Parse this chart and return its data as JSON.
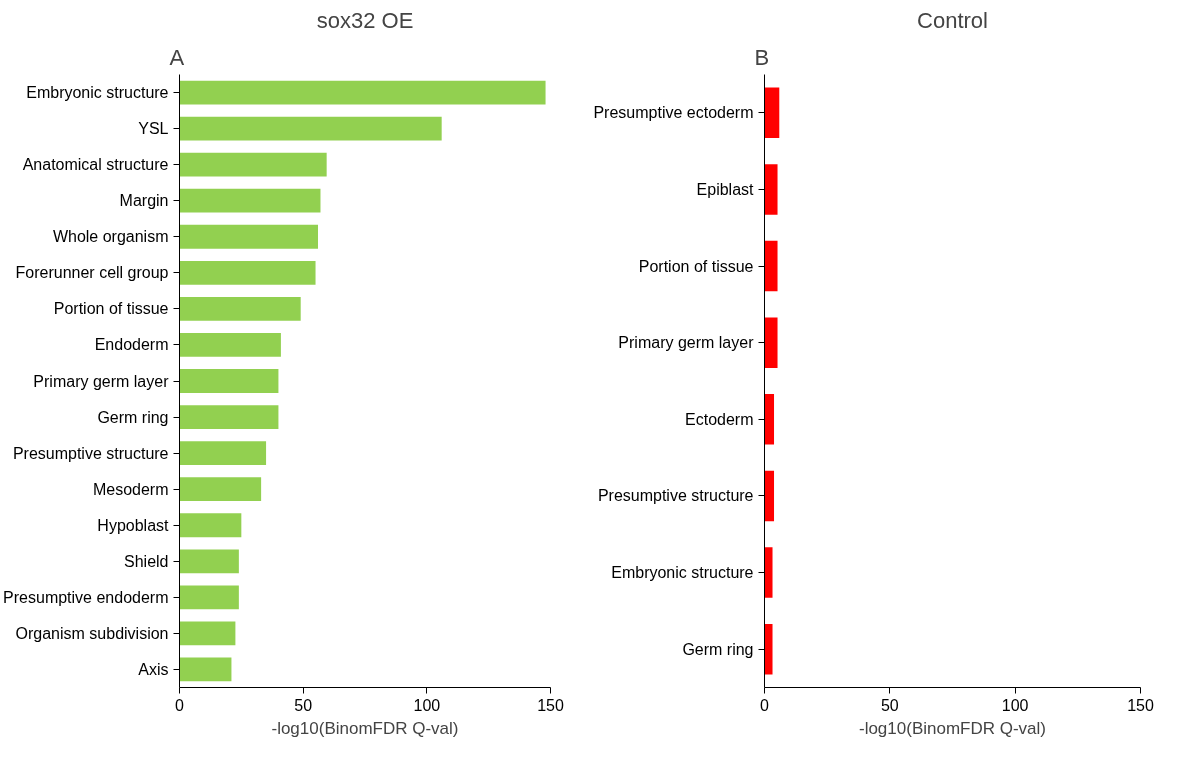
{
  "chart_data": [
    {
      "type": "bar",
      "orientation": "horizontal",
      "title": "sox32 OE",
      "xlabel": "-log10(BinomFDR Q-val)",
      "annotations": [
        "A"
      ],
      "categories": [
        "Embryonic structure",
        "YSL",
        "Anatomical structure",
        "Margin",
        "Whole organism",
        "Forerunner cell group",
        "Portion of tissue",
        "Endoderm",
        "Primary germ layer",
        "Germ ring",
        "Presumptive structure",
        "Mesoderm",
        "Hypoblast",
        "Shield",
        "Presumptive endoderm",
        "Organism subdivision",
        "Axis"
      ],
      "values": [
        148,
        106,
        59.5,
        57,
        56,
        55,
        49,
        41,
        40,
        40,
        35,
        33,
        25,
        24,
        24,
        22.6,
        21
      ],
      "color": "#92d050",
      "xlim": [
        0,
        150
      ],
      "xticks": [
        0,
        50,
        100,
        150
      ],
      "grid": false
    },
    {
      "type": "bar",
      "orientation": "horizontal",
      "title": "Control",
      "xlabel": "-log10(BinomFDR Q-val)",
      "annotations": [
        "B"
      ],
      "categories": [
        "Presumptive ectoderm",
        "Epiblast",
        "Portion of tissue",
        "Primary germ layer",
        "Ectoderm",
        "Presumptive structure",
        "Embryonic structure",
        "Germ ring"
      ],
      "values": [
        5.9,
        5.2,
        5.2,
        5.2,
        3.8,
        3.8,
        3.2,
        3.2
      ],
      "color": "#ff0000",
      "xlim": [
        0,
        150
      ],
      "xticks": [
        0,
        50,
        100,
        150
      ],
      "grid": false
    }
  ]
}
